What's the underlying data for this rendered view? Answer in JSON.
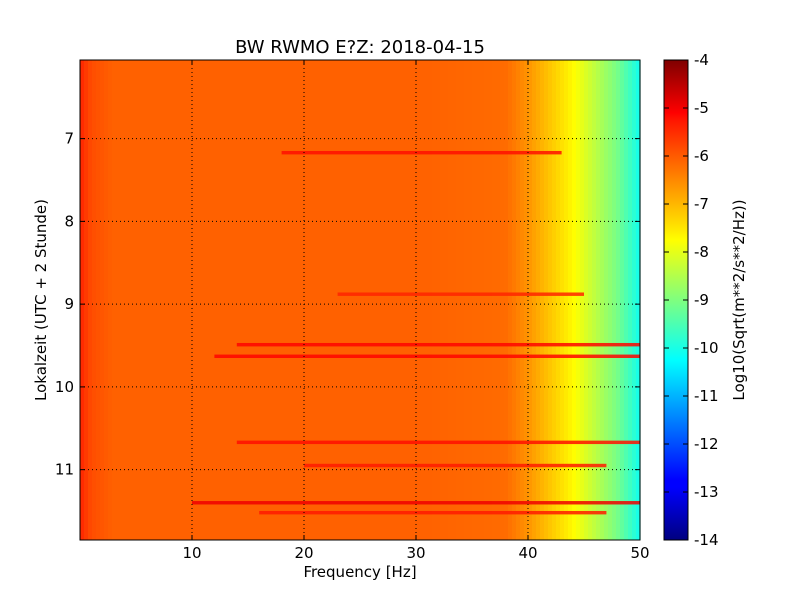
{
  "chart_data": {
    "type": "heatmap",
    "title": "BW RWMO E?Z: 2018-04-15",
    "xlabel": "Frequency [Hz]",
    "ylabel": "Lokalzeit (UTC + 2 Stunde)",
    "xlim": [
      0,
      50
    ],
    "ylim": [
      11.85,
      6.05
    ],
    "x_ticks": [
      "10",
      "20",
      "30",
      "40",
      "50"
    ],
    "y_ticks": [
      "7",
      "8",
      "9",
      "10",
      "11"
    ],
    "grid": true,
    "colormap": "jet",
    "colorbar": {
      "label": "Log10(Sqrt(m**2/s**2/Hz))",
      "range": [
        -14,
        -4
      ],
      "ticks": [
        "-4",
        "-5",
        "-6",
        "-7",
        "-8",
        "-9",
        "-10",
        "-11",
        "-12",
        "-13",
        "-14"
      ]
    },
    "freq_profile": {
      "frequency": [
        0,
        1,
        3,
        10,
        20,
        30,
        38,
        40,
        42,
        44,
        46,
        48,
        50
      ],
      "value": [
        -5.6,
        -6.0,
        -6.2,
        -6.2,
        -6.2,
        -6.2,
        -6.3,
        -6.7,
        -7.2,
        -7.7,
        -8.4,
        -9.1,
        -10.1
      ]
    },
    "high_power_bands": [
      {
        "time": 7.17,
        "f_start": 18,
        "f_end": 43,
        "value": -5.4
      },
      {
        "time": 8.88,
        "f_start": 23,
        "f_end": 45,
        "value": -5.6
      },
      {
        "time": 9.49,
        "f_start": 14,
        "f_end": 50,
        "value": -5.3
      },
      {
        "time": 9.63,
        "f_start": 12,
        "f_end": 50,
        "value": -5.3
      },
      {
        "time": 10.67,
        "f_start": 14,
        "f_end": 50,
        "value": -5.4
      },
      {
        "time": 10.95,
        "f_start": 20,
        "f_end": 47,
        "value": -5.5
      },
      {
        "time": 11.4,
        "f_start": 10,
        "f_end": 50,
        "value": -5.1
      },
      {
        "time": 11.52,
        "f_start": 16,
        "f_end": 47,
        "value": -5.5
      }
    ]
  }
}
